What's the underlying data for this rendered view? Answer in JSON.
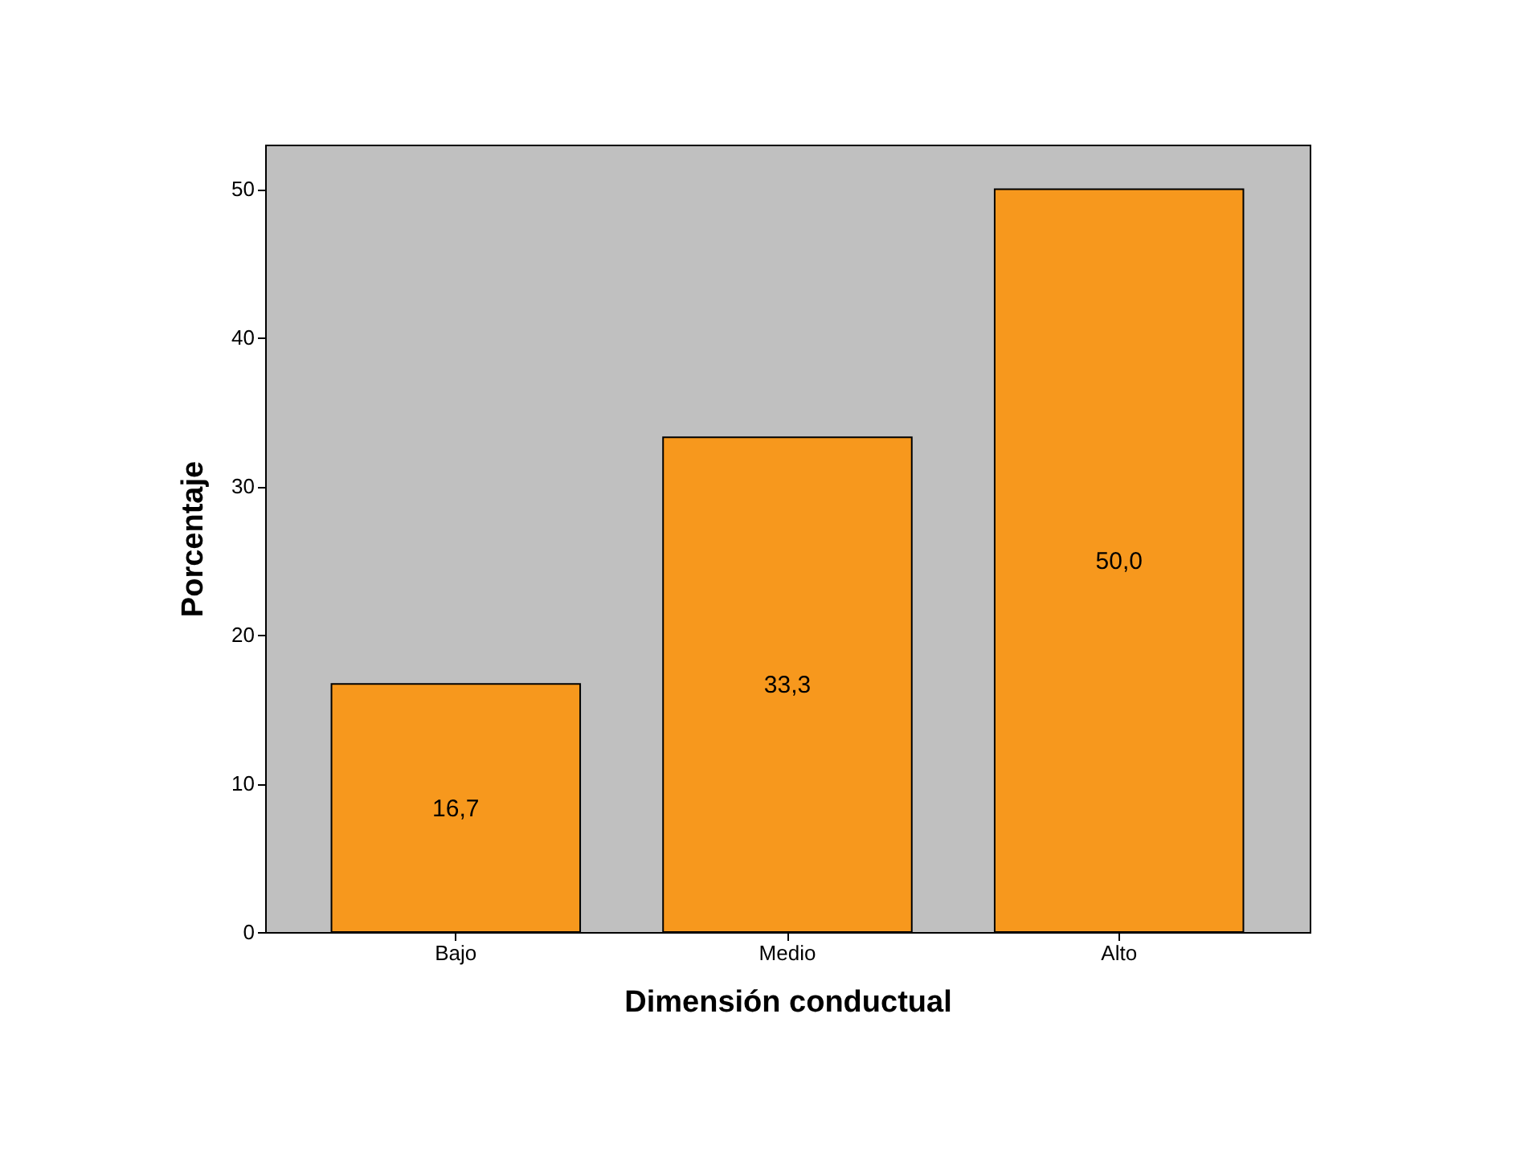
{
  "chart_data": {
    "type": "bar",
    "xlabel": "Dimensión conductual",
    "ylabel": "Porcentaje",
    "categories": [
      "Bajo",
      "Medio",
      "Alto"
    ],
    "values": [
      16.7,
      33.3,
      50.0
    ],
    "value_labels": [
      "16,7",
      "33,3",
      "50,0"
    ],
    "color": "#f7981d",
    "ylim": [
      0,
      53
    ],
    "yticks": [
      0,
      10,
      20,
      30,
      40,
      50
    ],
    "grid": false
  }
}
